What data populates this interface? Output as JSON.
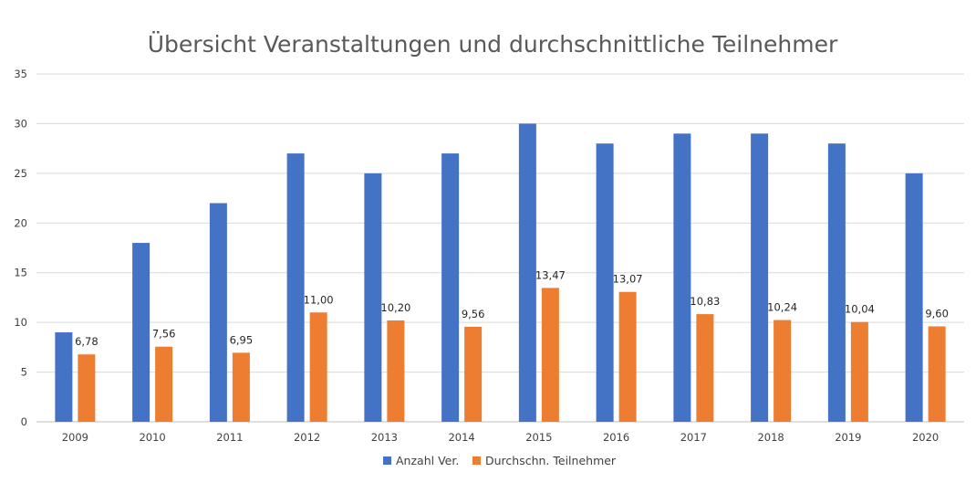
{
  "chart_data": {
    "type": "bar",
    "title": "Übersicht Veranstaltungen und durchschnittliche Teilnehmer",
    "categories": [
      "2009",
      "2010",
      "2011",
      "2012",
      "2013",
      "2014",
      "2015",
      "2016",
      "2017",
      "2018",
      "2019",
      "2020"
    ],
    "series": [
      {
        "name": "Anzahl Ver.",
        "color": "#4472c4",
        "values": [
          9,
          18,
          22,
          27,
          25,
          27,
          30,
          28,
          29,
          29,
          28,
          25
        ],
        "labels": null
      },
      {
        "name": "Durchschn. Teilnehmer",
        "color": "#ed7d31",
        "values": [
          6.78,
          7.56,
          6.95,
          11.0,
          10.2,
          9.56,
          13.47,
          13.07,
          10.83,
          10.24,
          10.04,
          9.6
        ],
        "labels": [
          "6,78",
          "7,56",
          "6,95",
          "11,00",
          "10,20",
          "9,56",
          "13,47",
          "13,07",
          "10,83",
          "10,24",
          "10,04",
          "9,60"
        ]
      }
    ],
    "ylim": [
      0,
      35
    ],
    "yticks": [
      0,
      5,
      10,
      15,
      20,
      25,
      30,
      35
    ],
    "grid": true,
    "legend": "bottom"
  }
}
